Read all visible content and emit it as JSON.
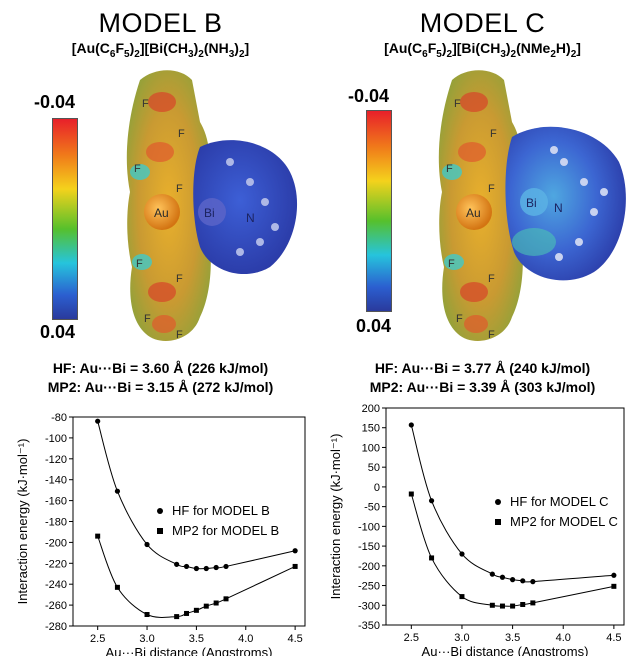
{
  "panels": [
    {
      "title": "MODEL B",
      "formula_parts": [
        "[Au(C",
        "6",
        "F",
        "5",
        ")",
        "2",
        "][Bi(CH",
        "3",
        ")",
        "2",
        "(NH",
        "3",
        ")",
        "2",
        "]"
      ],
      "scale_top": "-0.04",
      "scale_bottom": "0.04",
      "atom_labels": {
        "au": "Au",
        "bi": "Bi",
        "n": "N",
        "f": "F"
      },
      "hf_line": "HF: Au···Bi = 3.60 Å (226 kJ/mol)",
      "mp2_line": "MP2: Au···Bi = 3.15 Å (272 kJ/mol)"
    },
    {
      "title": "MODEL C",
      "formula_parts": [
        "[Au(C",
        "6",
        "F",
        "5",
        ")",
        "2",
        "][Bi(CH",
        "3",
        ")",
        "2",
        "(NMe",
        "2",
        "H)",
        "2",
        "]"
      ],
      "scale_top": "-0.04",
      "scale_bottom": "0.04",
      "atom_labels": {
        "au": "Au",
        "bi": "Bi",
        "n": "N",
        "f": "F"
      },
      "hf_line": "HF: Au···Bi = 3.77 Å (240 kJ/mol)",
      "mp2_line": "MP2: Au···Bi = 3.39 Å (303 kJ/mol)"
    }
  ],
  "chart_data": [
    {
      "type": "line",
      "xlabel": "Au···Bi distance (Angstroms)",
      "ylabel": "Interaction energy (kJ·mol⁻¹)",
      "xlim": [
        2.25,
        4.6
      ],
      "ylim": [
        -280,
        -80
      ],
      "xticks": [
        2.5,
        3.0,
        3.5,
        4.0,
        4.5
      ],
      "xtick_labels": [
        "2.5",
        "3.0",
        "3.5",
        "4.0",
        "4.5"
      ],
      "yticks": [
        -280,
        -260,
        -240,
        -220,
        -200,
        -180,
        -160,
        -140,
        -120,
        -100,
        -80
      ],
      "legend_position": "right",
      "series": [
        {
          "name": "HF for MODEL B",
          "marker": "circle",
          "x": [
            2.5,
            2.7,
            3.0,
            3.3,
            3.4,
            3.5,
            3.6,
            3.7,
            3.8,
            4.5
          ],
          "y": [
            -84,
            -151,
            -202,
            -221,
            -223,
            -225,
            -225,
            -224,
            -223,
            -208
          ]
        },
        {
          "name": "MP2 for MODEL B",
          "marker": "square",
          "x": [
            2.5,
            2.7,
            3.0,
            3.3,
            3.4,
            3.5,
            3.6,
            3.7,
            3.8,
            4.5
          ],
          "y": [
            -194,
            -243,
            -269,
            -271,
            -268,
            -265,
            -261,
            -258,
            -254,
            -223
          ]
        }
      ]
    },
    {
      "type": "line",
      "xlabel": "Au···Bi distance (Angstroms)",
      "ylabel": "Interaction energy (kJ·mol⁻¹)",
      "xlim": [
        2.25,
        4.6
      ],
      "ylim": [
        -350,
        200
      ],
      "xticks": [
        2.5,
        3.0,
        3.5,
        4.0,
        4.5
      ],
      "xtick_labels": [
        "2.5",
        "3.0",
        "3.5",
        "4.0",
        "4.5"
      ],
      "yticks": [
        -350,
        -300,
        -250,
        -200,
        -150,
        -100,
        -50,
        0,
        50,
        100,
        150,
        200
      ],
      "legend_position": "right",
      "series": [
        {
          "name": "HF for MODEL C",
          "marker": "circle",
          "x": [
            2.5,
            2.7,
            3.0,
            3.3,
            3.4,
            3.5,
            3.6,
            3.7,
            4.5
          ],
          "y": [
            157,
            -35,
            -170,
            -221,
            -229,
            -235,
            -238,
            -240,
            -224
          ]
        },
        {
          "name": "MP2 for MODEL C",
          "marker": "square",
          "x": [
            2.5,
            2.7,
            3.0,
            3.3,
            3.4,
            3.5,
            3.6,
            3.7,
            4.5
          ],
          "y": [
            -18,
            -180,
            -278,
            -300,
            -302,
            -302,
            -298,
            -294,
            -252
          ]
        }
      ]
    }
  ]
}
